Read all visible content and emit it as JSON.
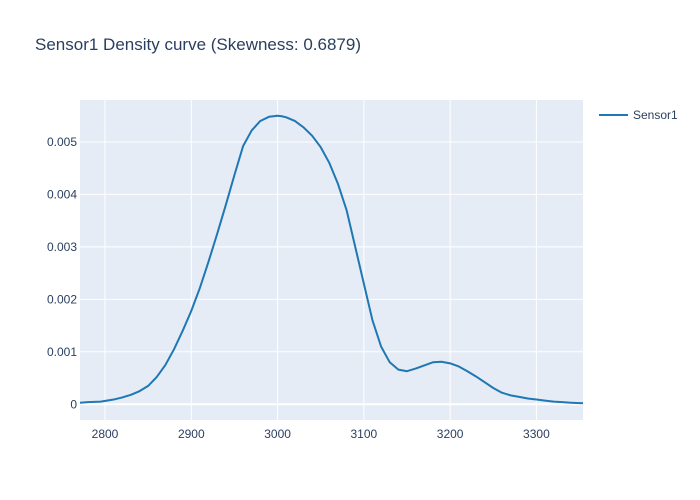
{
  "chart_data": {
    "type": "line",
    "title": "Sensor1 Density curve (Skewness: 0.6879)",
    "xlabel": "",
    "ylabel": "",
    "xlim": [
      2771,
      3354
    ],
    "ylim": [
      -0.0003,
      0.0058
    ],
    "x_ticks": [
      2800,
      2900,
      3000,
      3100,
      3200,
      3300
    ],
    "x_tick_labels": [
      "2800",
      "2900",
      "3000",
      "3100",
      "3200",
      "3300"
    ],
    "y_ticks": [
      0,
      0.001,
      0.002,
      0.003,
      0.004,
      0.005
    ],
    "y_tick_labels": [
      "0",
      "0.001",
      "0.002",
      "0.003",
      "0.004",
      "0.005"
    ],
    "grid": true,
    "legend_position": "top-right",
    "series": [
      {
        "name": "Sensor1",
        "color": "#1f77b4",
        "x": [
          2771,
          2780,
          2795,
          2810,
          2820,
          2830,
          2840,
          2850,
          2860,
          2870,
          2880,
          2890,
          2900,
          2910,
          2920,
          2930,
          2940,
          2950,
          2960,
          2970,
          2980,
          2990,
          3000,
          3005,
          3010,
          3020,
          3030,
          3040,
          3050,
          3060,
          3070,
          3080,
          3090,
          3100,
          3110,
          3120,
          3130,
          3140,
          3150,
          3160,
          3170,
          3180,
          3190,
          3200,
          3210,
          3220,
          3230,
          3240,
          3250,
          3260,
          3270,
          3280,
          3290,
          3300,
          3310,
          3320,
          3330,
          3340,
          3354
        ],
        "y": [
          3e-05,
          4e-05,
          5e-05,
          9e-05,
          0.00013,
          0.00018,
          0.00025,
          0.00035,
          0.00052,
          0.00075,
          0.00105,
          0.0014,
          0.00178,
          0.00222,
          0.00272,
          0.00325,
          0.0038,
          0.00437,
          0.00492,
          0.00522,
          0.0054,
          0.00548,
          0.0055,
          0.00549,
          0.00547,
          0.0054,
          0.00528,
          0.00512,
          0.0049,
          0.0046,
          0.0042,
          0.0037,
          0.003,
          0.0023,
          0.0016,
          0.0011,
          0.0008,
          0.00066,
          0.00063,
          0.00068,
          0.00074,
          0.0008,
          0.00081,
          0.00078,
          0.00072,
          0.00063,
          0.00053,
          0.00042,
          0.00031,
          0.00022,
          0.00017,
          0.00014,
          0.00011,
          9e-05,
          7e-05,
          5e-05,
          4e-05,
          3e-05,
          2e-05
        ]
      }
    ]
  }
}
